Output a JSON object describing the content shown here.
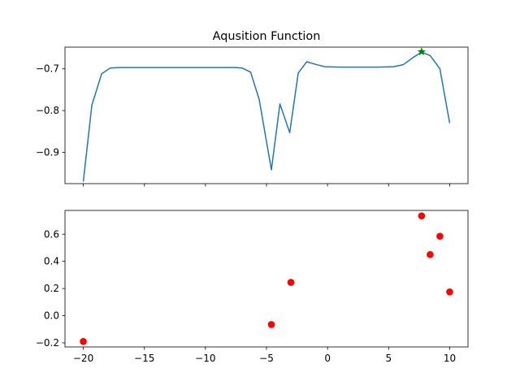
{
  "colors": {
    "line": "#1f77b4",
    "marker_star": "#008000",
    "scatter": "#ff0000"
  },
  "chart_data": [
    {
      "type": "line",
      "title": "Aqusition Function",
      "xlabel": "",
      "ylabel": "",
      "xlim": [
        -21.5,
        11.5
      ],
      "ylim": [
        -0.975,
        -0.648
      ],
      "grid": false,
      "x_ticks": [
        -20,
        -15,
        -10,
        -5,
        0,
        5,
        10
      ],
      "x_tick_labels_visible": false,
      "y_ticks": [
        -0.9,
        -0.8,
        -0.7
      ],
      "y_tick_labels": [
        "−0.9",
        "−0.8",
        "−0.7"
      ],
      "series": [
        {
          "x": [
            -20,
            -19.3,
            -18.5,
            -17.8,
            -17,
            -16,
            -15,
            -14,
            -13,
            -12,
            -11,
            -10,
            -9,
            -8,
            -7.5,
            -7,
            -6.3,
            -5.6,
            -4.6,
            -3.9,
            -3.1,
            -2.4,
            -1.7,
            -0.9,
            -0.2,
            1,
            2,
            3,
            4,
            5.4,
            6.2,
            7,
            7.7,
            8.4,
            9.2,
            10
          ],
          "y": [
            -0.97,
            -0.787,
            -0.712,
            -0.698,
            -0.697,
            -0.697,
            -0.697,
            -0.697,
            -0.697,
            -0.697,
            -0.697,
            -0.697,
            -0.697,
            -0.697,
            -0.697,
            -0.698,
            -0.708,
            -0.773,
            -0.942,
            -0.784,
            -0.853,
            -0.71,
            -0.683,
            -0.69,
            -0.695,
            -0.696,
            -0.696,
            -0.696,
            -0.696,
            -0.695,
            -0.69,
            -0.673,
            -0.66,
            -0.668,
            -0.7,
            -0.83
          ]
        }
      ],
      "annotations": [
        {
          "type": "marker",
          "marker": "star",
          "x": 7.7,
          "y": -0.659
        }
      ]
    },
    {
      "type": "scatter",
      "title": "",
      "xlabel": "",
      "ylabel": "",
      "xlim": [
        -21.5,
        11.5
      ],
      "ylim": [
        -0.23,
        0.775
      ],
      "grid": false,
      "x_ticks": [
        -20,
        -15,
        -10,
        -5,
        0,
        5,
        10
      ],
      "x_tick_labels": [
        "−20",
        "−15",
        "−10",
        "−5",
        "0",
        "5",
        "10"
      ],
      "y_ticks": [
        -0.2,
        0.0,
        0.2,
        0.4,
        0.6
      ],
      "y_tick_labels": [
        "−0.2",
        "0.0",
        "0.2",
        "0.4",
        "0.6"
      ],
      "series": [
        {
          "x": [
            -20,
            -4.6,
            -3.0,
            7.7,
            8.4,
            9.2,
            10
          ],
          "y": [
            -0.19,
            -0.065,
            0.245,
            0.735,
            0.45,
            0.585,
            0.175
          ]
        }
      ]
    }
  ]
}
